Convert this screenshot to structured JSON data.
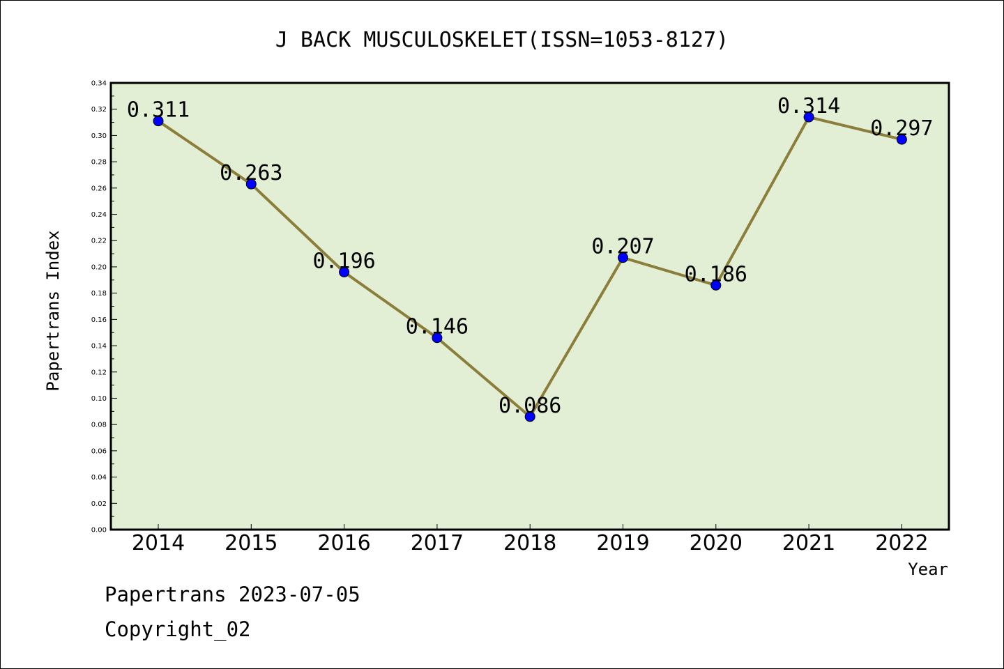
{
  "chart_data": {
    "type": "line",
    "title": "J BACK MUSCULOSKELET(ISSN=1053-8127)",
    "xlabel": "Year",
    "ylabel": "Papertrans Index",
    "categories": [
      "2014",
      "2015",
      "2016",
      "2017",
      "2018",
      "2019",
      "2020",
      "2021",
      "2022"
    ],
    "series": [
      {
        "values": [
          0.311,
          0.263,
          0.196,
          0.146,
          0.086,
          0.207,
          0.186,
          0.314,
          0.297
        ],
        "data_labels": [
          "0.311",
          "0.263",
          "0.196",
          "0.146",
          "0.086",
          "0.207",
          "0.186",
          "0.314",
          "0.297"
        ]
      }
    ],
    "ylim": [
      0,
      0.34
    ],
    "yticks": [
      "0.00",
      "0.02",
      "0.04",
      "0.06",
      "0.08",
      "0.10",
      "0.12",
      "0.14",
      "0.16",
      "0.18",
      "0.20",
      "0.22",
      "0.24",
      "0.26",
      "0.28",
      "0.30",
      "0.32",
      "0.34"
    ],
    "grid": false,
    "line_color": "#8b7d3a",
    "marker_color": "#0000ff",
    "plot_background": "#e2efd5"
  },
  "footer": {
    "line1": "Papertrans 2023-07-05",
    "line2": "Copyright_02"
  }
}
